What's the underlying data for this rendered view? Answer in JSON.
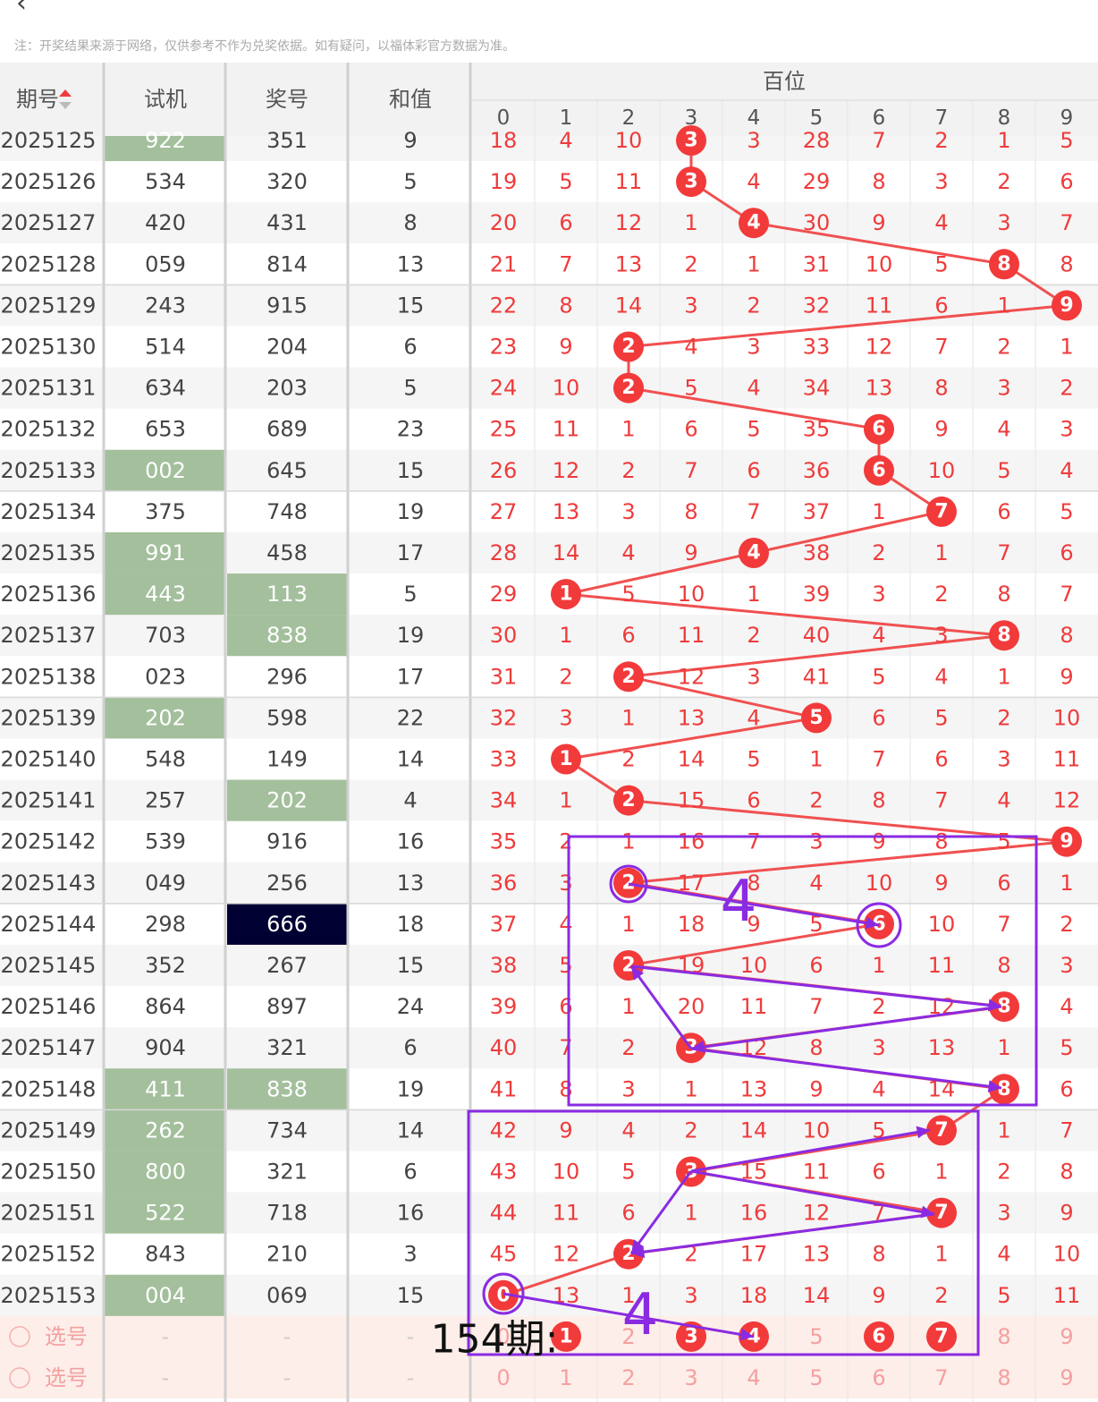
{
  "header": {
    "notice": "注：开奖结果来源于网络，仅供参考不作为兑奖依据。如有疑问，以福体彩官方数据为准。",
    "columns": [
      "期号",
      "试机",
      "奖号",
      "和值"
    ],
    "group_title": "百位",
    "digits": [
      "0",
      "1",
      "2",
      "3",
      "4",
      "5",
      "6",
      "7",
      "8",
      "9"
    ]
  },
  "rows": [
    {
      "issue": "2025125",
      "trial": "922",
      "trial_hl": true,
      "win": "351",
      "win_hl": false,
      "sum": "9",
      "values": [
        "18",
        "4",
        "10",
        "3",
        "3",
        "28",
        "7",
        "2",
        "1",
        "5"
      ],
      "hit": 3
    },
    {
      "issue": "2025126",
      "trial": "534",
      "trial_hl": false,
      "win": "320",
      "win_hl": false,
      "sum": "5",
      "values": [
        "19",
        "5",
        "11",
        "3",
        "4",
        "29",
        "8",
        "3",
        "2",
        "6"
      ],
      "hit": 3
    },
    {
      "issue": "2025127",
      "trial": "420",
      "trial_hl": false,
      "win": "431",
      "win_hl": false,
      "sum": "8",
      "values": [
        "20",
        "6",
        "12",
        "1",
        "4",
        "30",
        "9",
        "4",
        "3",
        "7"
      ],
      "hit": 4
    },
    {
      "issue": "2025128",
      "trial": "059",
      "trial_hl": false,
      "win": "814",
      "win_hl": false,
      "sum": "13",
      "values": [
        "21",
        "7",
        "13",
        "2",
        "1",
        "31",
        "10",
        "5",
        "8",
        "8"
      ],
      "hit": 8
    },
    {
      "issue": "2025129",
      "trial": "243",
      "trial_hl": false,
      "win": "915",
      "win_hl": false,
      "sum": "15",
      "values": [
        "22",
        "8",
        "14",
        "3",
        "2",
        "32",
        "11",
        "6",
        "1",
        "9"
      ],
      "hit": 9
    },
    {
      "issue": "2025130",
      "trial": "514",
      "trial_hl": false,
      "win": "204",
      "win_hl": false,
      "sum": "6",
      "values": [
        "23",
        "9",
        "2",
        "4",
        "3",
        "33",
        "12",
        "7",
        "2",
        "1"
      ],
      "hit": 2
    },
    {
      "issue": "2025131",
      "trial": "634",
      "trial_hl": false,
      "win": "203",
      "win_hl": false,
      "sum": "5",
      "values": [
        "24",
        "10",
        "2",
        "5",
        "4",
        "34",
        "13",
        "8",
        "3",
        "2"
      ],
      "hit": 2
    },
    {
      "issue": "2025132",
      "trial": "653",
      "trial_hl": false,
      "win": "689",
      "win_hl": false,
      "sum": "23",
      "values": [
        "25",
        "11",
        "1",
        "6",
        "5",
        "35",
        "6",
        "9",
        "4",
        "3"
      ],
      "hit": 6
    },
    {
      "issue": "2025133",
      "trial": "002",
      "trial_hl": true,
      "win": "645",
      "win_hl": false,
      "sum": "15",
      "values": [
        "26",
        "12",
        "2",
        "7",
        "6",
        "36",
        "6",
        "10",
        "5",
        "4"
      ],
      "hit": 6
    },
    {
      "issue": "2025134",
      "trial": "375",
      "trial_hl": false,
      "win": "748",
      "win_hl": false,
      "sum": "19",
      "values": [
        "27",
        "13",
        "3",
        "8",
        "7",
        "37",
        "1",
        "7",
        "6",
        "5"
      ],
      "hit": 7
    },
    {
      "issue": "2025135",
      "trial": "991",
      "trial_hl": true,
      "win": "458",
      "win_hl": false,
      "sum": "17",
      "values": [
        "28",
        "14",
        "4",
        "9",
        "4",
        "38",
        "2",
        "1",
        "7",
        "6"
      ],
      "hit": 4
    },
    {
      "issue": "2025136",
      "trial": "443",
      "trial_hl": true,
      "win": "113",
      "win_hl": true,
      "sum": "5",
      "values": [
        "29",
        "1",
        "5",
        "10",
        "1",
        "39",
        "3",
        "2",
        "8",
        "7"
      ],
      "hit": 1
    },
    {
      "issue": "2025137",
      "trial": "703",
      "trial_hl": false,
      "win": "838",
      "win_hl": true,
      "sum": "19",
      "values": [
        "30",
        "1",
        "6",
        "11",
        "2",
        "40",
        "4",
        "3",
        "8",
        "8"
      ],
      "hit": 8
    },
    {
      "issue": "2025138",
      "trial": "023",
      "trial_hl": false,
      "win": "296",
      "win_hl": false,
      "sum": "17",
      "values": [
        "31",
        "2",
        "2",
        "12",
        "3",
        "41",
        "5",
        "4",
        "1",
        "9"
      ],
      "hit": 2
    },
    {
      "issue": "2025139",
      "trial": "202",
      "trial_hl": true,
      "win": "598",
      "win_hl": false,
      "sum": "22",
      "values": [
        "32",
        "3",
        "1",
        "13",
        "4",
        "5",
        "6",
        "5",
        "2",
        "10"
      ],
      "hit": 5
    },
    {
      "issue": "2025140",
      "trial": "548",
      "trial_hl": false,
      "win": "149",
      "win_hl": false,
      "sum": "14",
      "values": [
        "33",
        "1",
        "2",
        "14",
        "5",
        "1",
        "7",
        "6",
        "3",
        "11"
      ],
      "hit": 1
    },
    {
      "issue": "2025141",
      "trial": "257",
      "trial_hl": false,
      "win": "202",
      "win_hl": true,
      "sum": "4",
      "values": [
        "34",
        "1",
        "2",
        "15",
        "6",
        "2",
        "8",
        "7",
        "4",
        "12"
      ],
      "hit": 2
    },
    {
      "issue": "2025142",
      "trial": "539",
      "trial_hl": false,
      "win": "916",
      "win_hl": false,
      "sum": "16",
      "values": [
        "35",
        "2",
        "1",
        "16",
        "7",
        "3",
        "9",
        "8",
        "5",
        "9"
      ],
      "hit": 9
    },
    {
      "issue": "2025143",
      "trial": "049",
      "trial_hl": false,
      "win": "256",
      "win_hl": false,
      "sum": "13",
      "values": [
        "36",
        "3",
        "2",
        "17",
        "8",
        "4",
        "10",
        "9",
        "6",
        "1"
      ],
      "hit": 2
    },
    {
      "issue": "2025144",
      "trial": "298",
      "trial_hl": false,
      "win": "666",
      "win_hl": false,
      "win_dark": true,
      "sum": "18",
      "values": [
        "37",
        "4",
        "1",
        "18",
        "9",
        "5",
        "6",
        "10",
        "7",
        "2"
      ],
      "hit": 6
    },
    {
      "issue": "2025145",
      "trial": "352",
      "trial_hl": false,
      "win": "267",
      "win_hl": false,
      "sum": "15",
      "values": [
        "38",
        "5",
        "2",
        "19",
        "10",
        "6",
        "1",
        "11",
        "8",
        "3"
      ],
      "hit": 2
    },
    {
      "issue": "2025146",
      "trial": "864",
      "trial_hl": false,
      "win": "897",
      "win_hl": false,
      "sum": "24",
      "values": [
        "39",
        "6",
        "1",
        "20",
        "11",
        "7",
        "2",
        "12",
        "8",
        "4"
      ],
      "hit": 8
    },
    {
      "issue": "2025147",
      "trial": "904",
      "trial_hl": false,
      "win": "321",
      "win_hl": false,
      "sum": "6",
      "values": [
        "40",
        "7",
        "2",
        "3",
        "12",
        "8",
        "3",
        "13",
        "1",
        "5"
      ],
      "hit": 3
    },
    {
      "issue": "2025148",
      "trial": "411",
      "trial_hl": true,
      "win": "838",
      "win_hl": true,
      "sum": "19",
      "values": [
        "41",
        "8",
        "3",
        "1",
        "13",
        "9",
        "4",
        "14",
        "8",
        "6"
      ],
      "hit": 8
    },
    {
      "issue": "2025149",
      "trial": "262",
      "trial_hl": true,
      "win": "734",
      "win_hl": false,
      "sum": "14",
      "values": [
        "42",
        "9",
        "4",
        "2",
        "14",
        "10",
        "5",
        "7",
        "1",
        "7"
      ],
      "hit": 7
    },
    {
      "issue": "2025150",
      "trial": "800",
      "trial_hl": true,
      "win": "321",
      "win_hl": false,
      "sum": "6",
      "values": [
        "43",
        "10",
        "5",
        "3",
        "15",
        "11",
        "6",
        "1",
        "2",
        "8"
      ],
      "hit": 3
    },
    {
      "issue": "2025151",
      "trial": "522",
      "trial_hl": true,
      "win": "718",
      "win_hl": false,
      "sum": "16",
      "values": [
        "44",
        "11",
        "6",
        "1",
        "16",
        "12",
        "7",
        "7",
        "3",
        "9"
      ],
      "hit": 7
    },
    {
      "issue": "2025152",
      "trial": "843",
      "trial_hl": false,
      "win": "210",
      "win_hl": false,
      "sum": "3",
      "values": [
        "45",
        "12",
        "2",
        "2",
        "17",
        "13",
        "8",
        "1",
        "4",
        "10"
      ],
      "hit": 2
    },
    {
      "issue": "2025153",
      "trial": "004",
      "trial_hl": true,
      "win": "069",
      "win_hl": false,
      "sum": "15",
      "values": [
        "0",
        "13",
        "1",
        "3",
        "18",
        "14",
        "9",
        "2",
        "5",
        "11"
      ],
      "hit": 0
    }
  ],
  "pick_rows": [
    {
      "label": "选号",
      "trial": "-",
      "win": "-",
      "sum": "-",
      "values": [
        "0",
        "1",
        "2",
        "3",
        "4",
        "5",
        "6",
        "7",
        "8",
        "9"
      ],
      "selected": [
        1,
        3,
        4,
        6,
        7
      ]
    },
    {
      "label": "选号",
      "trial": "-",
      "win": "-",
      "sum": "-",
      "values": [
        "0",
        "1",
        "2",
        "3",
        "4",
        "5",
        "6",
        "7",
        "8",
        "9"
      ],
      "selected": []
    }
  ],
  "annotations": {
    "period_label": "154期:",
    "marks": [
      "4",
      "4"
    ]
  },
  "colors": {
    "ball": "#f23a3a",
    "line": "#f05050",
    "highlight_green": "#a3bf9c",
    "highlight_dark": "#000033",
    "annotation": "#8a2be2",
    "red_text": "#ef3b3b"
  }
}
